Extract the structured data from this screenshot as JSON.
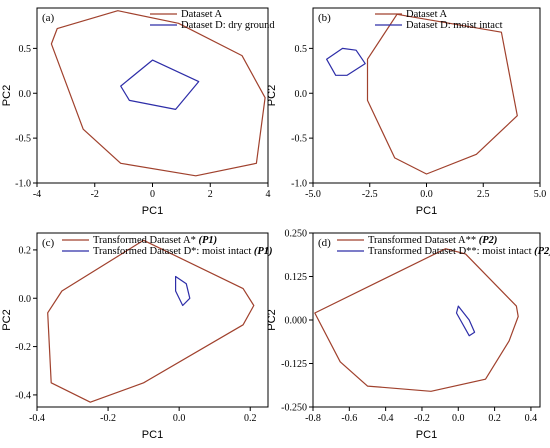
{
  "chart_data": [
    {
      "type": "area",
      "panel_label": "(a)",
      "xlabel": "PC1",
      "ylabel": "PC2",
      "xlim": [
        -4,
        4
      ],
      "ylim": [
        -1.0,
        0.95
      ],
      "xticks": [
        -4,
        -2,
        0,
        2,
        4
      ],
      "xtick_labels": [
        "-4",
        "-2",
        "0",
        "2",
        "4"
      ],
      "yticks": [
        -1.0,
        -0.5,
        0.0,
        0.5
      ],
      "ytick_labels": [
        "-1.0",
        "-0.5",
        "0.0",
        "0.5"
      ],
      "legend_position": "top-right",
      "series": [
        {
          "name": "Dataset A",
          "color": "#a0412d",
          "labels": [],
          "points": [
            [
              -1.2,
              0.92
            ],
            [
              0.9,
              0.78
            ],
            [
              3.1,
              0.42
            ],
            [
              3.9,
              -0.05
            ],
            [
              3.6,
              -0.78
            ],
            [
              1.5,
              -0.92
            ],
            [
              -1.1,
              -0.78
            ],
            [
              -2.4,
              -0.4
            ],
            [
              -3.5,
              0.55
            ],
            [
              -3.3,
              0.72
            ]
          ]
        },
        {
          "name": "Dataset D: dry ground",
          "color": "#2d2da8",
          "labels": [],
          "points": [
            [
              -1.1,
              0.08
            ],
            [
              0.0,
              0.37
            ],
            [
              1.6,
              0.13
            ],
            [
              0.8,
              -0.18
            ],
            [
              -0.8,
              -0.08
            ]
          ]
        }
      ]
    },
    {
      "type": "area",
      "panel_label": "(b)",
      "xlabel": "PC1",
      "ylabel": "PC2",
      "xlim": [
        -5.0,
        5.0
      ],
      "ylim": [
        -1.0,
        0.95
      ],
      "xticks": [
        -5.0,
        -2.5,
        0.0,
        2.5,
        5.0
      ],
      "xtick_labels": [
        "-5.0",
        "-2.5",
        "0.0",
        "2.5",
        "5.0"
      ],
      "yticks": [
        -1.0,
        -0.5,
        0.0,
        0.5
      ],
      "ytick_labels": [
        "-1.0",
        "-0.5",
        "0.0",
        "0.5"
      ],
      "legend_position": "top-right",
      "series": [
        {
          "name": "Dataset A",
          "color": "#a0412d",
          "labels": [],
          "points": [
            [
              -1.3,
              0.88
            ],
            [
              3.3,
              0.68
            ],
            [
              4.0,
              -0.25
            ],
            [
              2.2,
              -0.68
            ],
            [
              0.0,
              -0.9
            ],
            [
              -1.4,
              -0.72
            ],
            [
              -2.6,
              -0.08
            ],
            [
              -2.6,
              0.38
            ]
          ]
        },
        {
          "name": "Dataset D: moist intact",
          "color": "#2d2da8",
          "labels": [],
          "points": [
            [
              -4.4,
              0.38
            ],
            [
              -3.7,
              0.5
            ],
            [
              -3.1,
              0.48
            ],
            [
              -2.7,
              0.33
            ],
            [
              -3.5,
              0.2
            ],
            [
              -4.0,
              0.2
            ]
          ]
        }
      ]
    },
    {
      "type": "area",
      "panel_label": "(c)",
      "xlabel": "PC1",
      "ylabel": "PC2",
      "xlim": [
        -0.4,
        0.25
      ],
      "ylim": [
        -0.45,
        0.27
      ],
      "xticks": [
        -0.4,
        -0.2,
        0.0,
        0.2
      ],
      "xtick_labels": [
        "-0.4",
        "-0.2",
        "0.0",
        "0.2"
      ],
      "yticks": [
        -0.4,
        -0.2,
        0.0,
        0.2
      ],
      "ytick_labels": [
        "-0.4",
        "-0.2",
        "0.0",
        "0.2"
      ],
      "legend_position": "top-left",
      "series": [
        {
          "name": "Transformed Dataset A* ",
          "suffix": "(P1)",
          "color": "#a0412d",
          "labels": [],
          "points": [
            [
              -0.1,
              0.24
            ],
            [
              0.18,
              0.04
            ],
            [
              0.21,
              -0.03
            ],
            [
              0.18,
              -0.11
            ],
            [
              -0.1,
              -0.35
            ],
            [
              -0.25,
              -0.43
            ],
            [
              -0.36,
              -0.35
            ],
            [
              -0.37,
              -0.06
            ],
            [
              -0.33,
              0.03
            ]
          ]
        },
        {
          "name": "Transformed Dataset D*: moist intact ",
          "suffix": "(P1)",
          "color": "#2d2da8",
          "labels": [],
          "points": [
            [
              -0.01,
              0.09
            ],
            [
              0.02,
              0.06
            ],
            [
              0.03,
              0.0
            ],
            [
              0.01,
              -0.03
            ],
            [
              -0.01,
              0.03
            ]
          ]
        }
      ]
    },
    {
      "type": "area",
      "panel_label": "(d)",
      "xlabel": "PC1",
      "ylabel": "PC2",
      "xlim": [
        -0.8,
        0.45
      ],
      "ylim": [
        -0.25,
        0.25
      ],
      "xticks": [
        -0.8,
        -0.6,
        -0.4,
        -0.2,
        0.0,
        0.2,
        0.4
      ],
      "xtick_labels": [
        "-0.8",
        "-0.6",
        "-0.4",
        "-0.2",
        "0.0",
        "0.2",
        "0.4"
      ],
      "yticks": [
        -0.25,
        -0.125,
        0.0,
        0.125,
        0.25
      ],
      "ytick_labels": [
        "-0.250",
        "-0.125",
        "0.000",
        "0.125",
        "0.250"
      ],
      "legend_position": "top-left",
      "series": [
        {
          "name": "Transformed Dataset A** ",
          "suffix": "(P2)",
          "color": "#a0412d",
          "labels": [],
          "points": [
            [
              -0.07,
              0.205
            ],
            [
              0.04,
              0.19
            ],
            [
              0.32,
              0.04
            ],
            [
              0.33,
              0.01
            ],
            [
              0.28,
              -0.06
            ],
            [
              0.15,
              -0.17
            ],
            [
              -0.15,
              -0.205
            ],
            [
              -0.5,
              -0.19
            ],
            [
              -0.65,
              -0.12
            ],
            [
              -0.79,
              0.02
            ]
          ]
        },
        {
          "name": "Transformed Dataset D**: moist intact ",
          "suffix": "(P2)",
          "color": "#2d2da8",
          "labels": [],
          "points": [
            [
              0.0,
              0.04
            ],
            [
              0.06,
              0.0
            ],
            [
              0.09,
              -0.035
            ],
            [
              0.06,
              -0.045
            ],
            [
              -0.01,
              0.02
            ]
          ]
        }
      ]
    }
  ]
}
